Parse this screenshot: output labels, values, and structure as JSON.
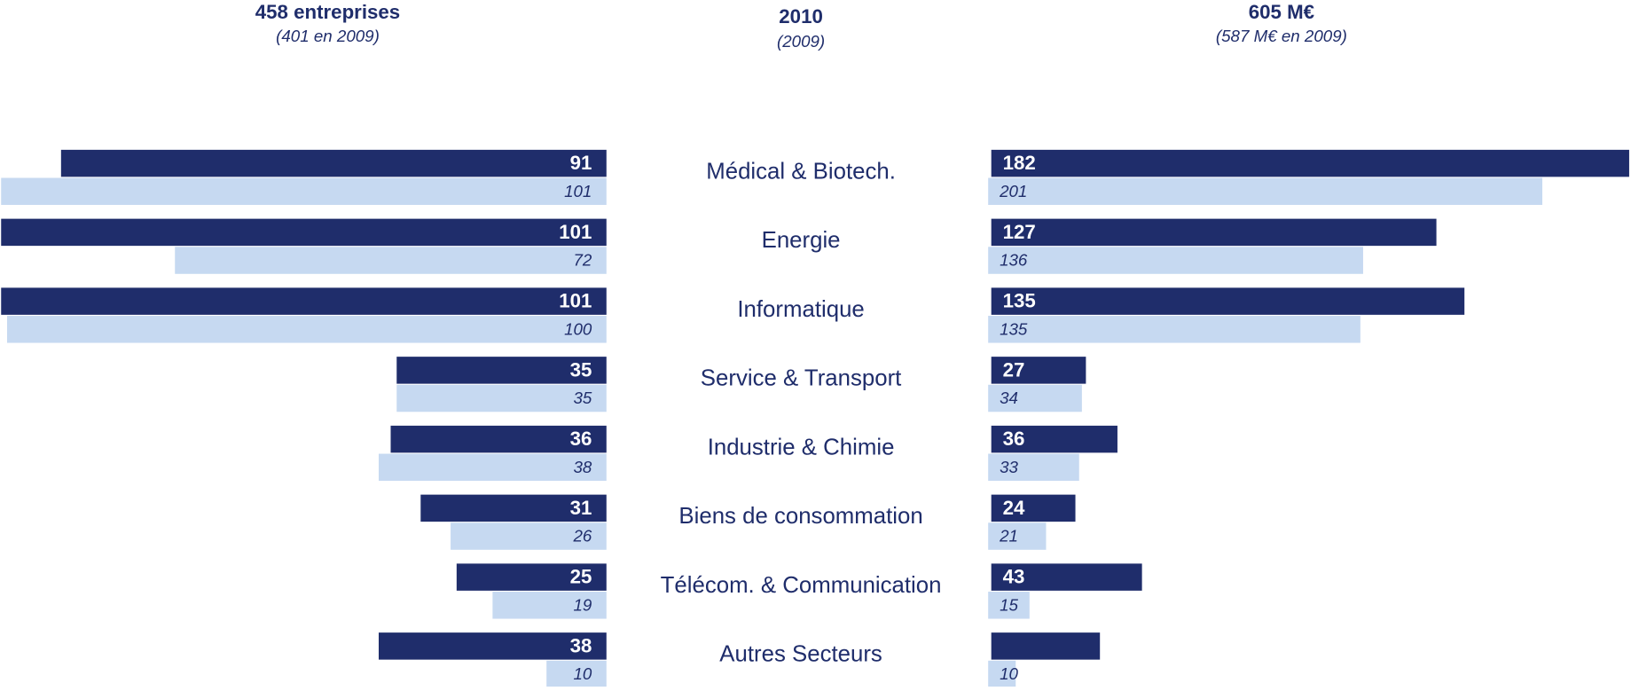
{
  "chart_data": {
    "type": "butterfly",
    "title": "2010",
    "subtitle": "(2009)",
    "categories": [
      "Médical & Biotech.",
      "Energie",
      "Informatique",
      "Service & Transport",
      "Industrie & Chimie",
      "Biens de consommation",
      "Télécom. & Communication",
      "Autres Secteurs"
    ],
    "panels": [
      {
        "side": "left",
        "title": "458 entreprises",
        "subtitle": "(401 en 2009)",
        "series": [
          {
            "name": "2010",
            "color": "#1f2d6b",
            "xlim": [
              0,
              101
            ],
            "values": [
              91,
              101,
              101,
              35,
              36,
              31,
              25,
              38
            ]
          },
          {
            "name": "2009",
            "color": "#c6d9f1",
            "xlim": [
              0,
              101
            ],
            "values": [
              101,
              72,
              100,
              35,
              38,
              26,
              19,
              10
            ]
          }
        ]
      },
      {
        "side": "right",
        "title": "605  M€",
        "subtitle": "(587 M€ en 2009)",
        "series": [
          {
            "name": "2010",
            "color": "#1f2d6b",
            "xlim": [
              0,
              182.5
            ],
            "values": [
              182,
              127,
              135,
              27,
              36,
              24,
              43,
              31
            ],
            "value_labels": [
              "182",
              "127",
              "135",
              "27",
              "36",
              "24",
              "43",
              null
            ]
          },
          {
            "name": "2009",
            "color": "#c6d9f1",
            "xlim": [
              0,
              232
            ],
            "values": [
              201,
              136,
              135,
              34,
              33,
              21,
              15,
              10
            ]
          }
        ]
      }
    ]
  }
}
